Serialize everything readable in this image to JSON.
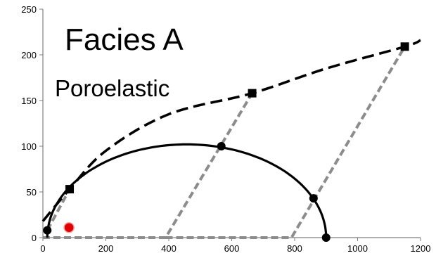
{
  "chart_data": {
    "type": "scatter",
    "annotations": [
      "Facies A",
      "Poroelastic"
    ],
    "xlim": [
      0,
      1200
    ],
    "ylim": [
      0,
      250
    ],
    "x_ticks": [
      0,
      200,
      400,
      600,
      800,
      1000,
      1200
    ],
    "y_ticks": [
      0,
      50,
      100,
      150,
      200,
      250
    ],
    "grid": false,
    "legend": "none",
    "series": [
      {
        "kind": "mohr-circle",
        "style": "solid black",
        "center": [
          457,
          0
        ],
        "radius": 443,
        "points": [
          [
            14,
            8
          ],
          [
            567,
            100
          ],
          [
            860,
            43
          ],
          [
            900,
            0
          ]
        ]
      },
      {
        "kind": "failure-envelope",
        "style": "dashed black",
        "points": [
          [
            0,
            18
          ],
          [
            85,
            53
          ],
          [
            200,
            95
          ],
          [
            400,
            135
          ],
          [
            665,
            158
          ],
          [
            900,
            185
          ],
          [
            1150,
            209
          ],
          [
            1200,
            216
          ]
        ],
        "markers": [
          [
            85,
            53
          ],
          [
            665,
            158
          ],
          [
            1150,
            209
          ]
        ]
      },
      {
        "kind": "stress-path",
        "style": "dotted gray",
        "points": [
          [
            14,
            8
          ],
          [
            85,
            53
          ]
        ]
      },
      {
        "kind": "stress-path",
        "style": "dotted gray",
        "points": [
          [
            0,
            0
          ],
          [
            390,
            0
          ],
          [
            665,
            158
          ]
        ]
      },
      {
        "kind": "stress-path",
        "style": "dotted gray",
        "points": [
          [
            390,
            0
          ],
          [
            790,
            0
          ],
          [
            1150,
            209
          ]
        ]
      },
      {
        "kind": "point",
        "style": "red dot",
        "points": [
          [
            83,
            11
          ]
        ]
      }
    ]
  },
  "colors": {
    "axis": "#7f7f7f",
    "line": "#000000",
    "path": "#8c8c8c",
    "highlight": "#e00000"
  }
}
